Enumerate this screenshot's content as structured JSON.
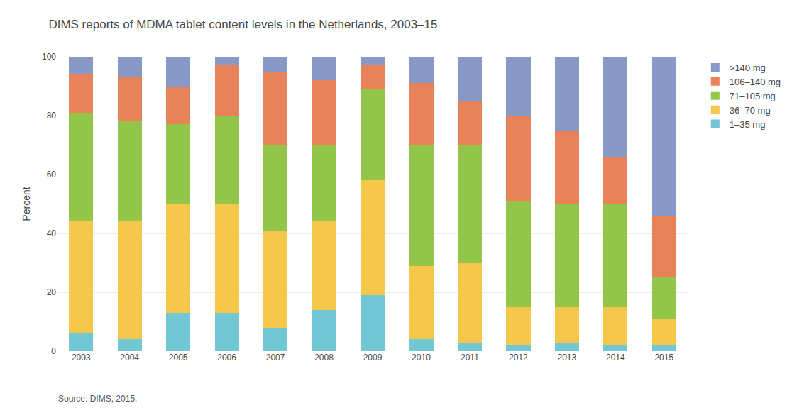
{
  "chart_data": {
    "type": "bar",
    "stacked": true,
    "title": "DIMS reports of MDMA tablet content levels in the Netherlands, 2003–15",
    "ylabel": "Percent",
    "annotations": [
      "Source: DIMS, 2015."
    ],
    "categories": [
      "2003",
      "2004",
      "2005",
      "2006",
      "2007",
      "2008",
      "2009",
      "2010",
      "2011",
      "2012",
      "2013",
      "2014",
      "2015"
    ],
    "series": [
      {
        "name": "1–35 mg",
        "color": "#72c7d4",
        "values": [
          6,
          4,
          13,
          13,
          8,
          14,
          19,
          4,
          3,
          2,
          3,
          2,
          2
        ]
      },
      {
        "name": "36–70 mg",
        "color": "#f5c84c",
        "values": [
          38,
          40,
          37,
          37,
          33,
          30,
          39,
          25,
          27,
          13,
          12,
          13,
          9
        ]
      },
      {
        "name": "71–105 mg",
        "color": "#93c54b",
        "values": [
          37,
          34,
          27,
          30,
          29,
          26,
          31,
          41,
          40,
          36,
          35,
          35,
          14
        ]
      },
      {
        "name": "106–140 mg",
        "color": "#e8825a",
        "values": [
          13,
          15,
          13,
          17,
          25,
          22,
          8,
          21,
          15,
          29,
          25,
          16,
          21
        ]
      },
      {
        "name": ">140 mg",
        "color": "#8899c8",
        "values": [
          6,
          7,
          10,
          3,
          5,
          8,
          3,
          9,
          15,
          20,
          25,
          34,
          54
        ]
      }
    ],
    "ylim": [
      0,
      100
    ],
    "yticks": [
      0,
      20,
      40,
      60,
      80,
      100
    ],
    "grid": true,
    "legend": "right"
  }
}
